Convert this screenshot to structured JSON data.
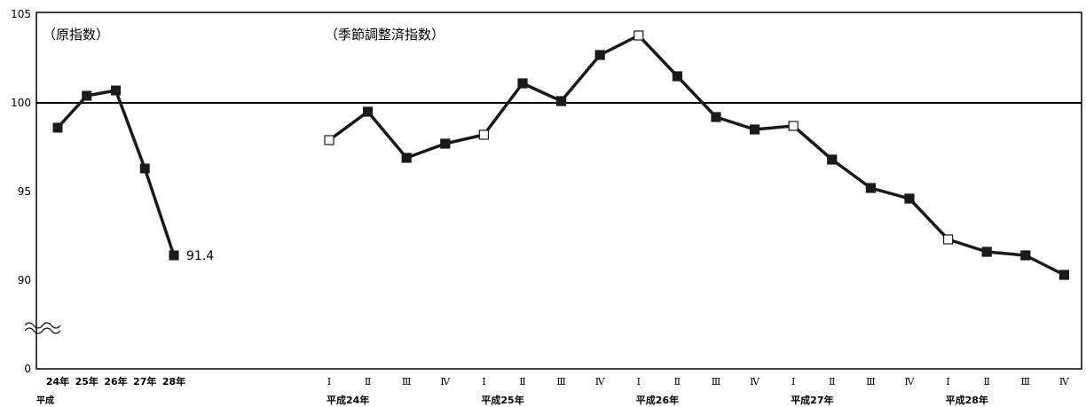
{
  "chart_data": {
    "type": "line",
    "y_axis": {
      "ticks": [
        0,
        90,
        95,
        100,
        105
      ],
      "tick_labels": [
        "0",
        "90",
        "95",
        "100",
        "105"
      ],
      "axis_break": true,
      "reference_line": 100
    },
    "panels": [
      {
        "label": "（原指数）",
        "categories": [
          "24年",
          "25年",
          "26年",
          "27年",
          "28年"
        ],
        "era_label": "平成",
        "values": [
          98.6,
          100.4,
          100.7,
          96.3,
          91.4
        ],
        "annotation": "91.4",
        "open_markers": []
      },
      {
        "label": "（季節調整済指数）",
        "categories": [
          "Ⅰ",
          "Ⅱ",
          "Ⅲ",
          "Ⅳ",
          "Ⅰ",
          "Ⅱ",
          "Ⅲ",
          "Ⅳ",
          "Ⅰ",
          "Ⅱ",
          "Ⅲ",
          "Ⅳ",
          "Ⅰ",
          "Ⅱ",
          "Ⅲ",
          "Ⅳ",
          "Ⅰ",
          "Ⅱ",
          "Ⅲ",
          "Ⅳ"
        ],
        "year_labels": [
          "平成24年",
          "平成25年",
          "平成26年",
          "平成27年",
          "平成28年"
        ],
        "values": [
          97.9,
          99.5,
          96.9,
          97.7,
          98.2,
          101.1,
          100.1,
          102.7,
          103.8,
          101.5,
          99.2,
          98.5,
          98.7,
          96.8,
          95.2,
          94.6,
          92.3,
          91.6,
          91.4,
          90.3
        ],
        "open_markers": [
          0,
          4,
          8,
          12,
          16
        ]
      }
    ],
    "colors": {
      "line": "#1a1a1a",
      "axis": "#000000"
    }
  }
}
